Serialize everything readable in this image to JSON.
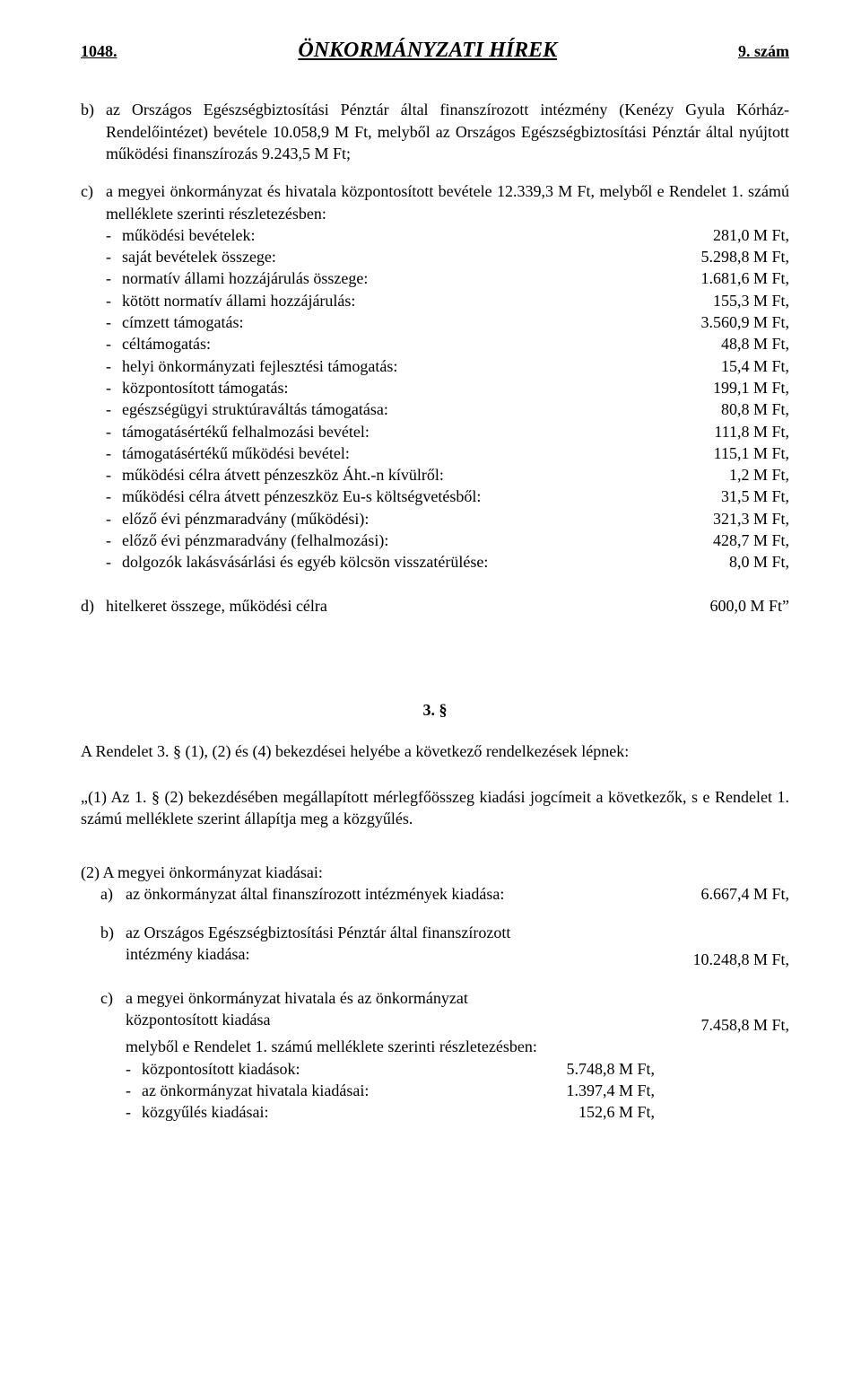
{
  "header": {
    "left": "1048.",
    "center": "ÖNKORMÁNYZATI HÍREK",
    "right": "9. szám"
  },
  "b_intro": {
    "lead": "b)",
    "text1": "az Országos Egészségbiztosítási Pénztár által finanszírozott intézmény (Kenézy Gyula Kórház-Rendelőintézet) bevétele 10.058,9 M Ft, melyből az Országos Egészségbiztosítási Pénztár által nyújtott működési finanszírozás 9.243,5 M Ft;"
  },
  "c_intro": {
    "lead": "c)",
    "text": "a megyei önkormányzat és hivatala központosított bevétele 12.339,3 M Ft, melyből e Rendelet 1. számú melléklete szerinti részletezésben:"
  },
  "c_items": [
    {
      "label": "működési bevételek:",
      "val": "281,0 M Ft,"
    },
    {
      "label": "saját bevételek összege:",
      "val": "5.298,8 M Ft,"
    },
    {
      "label": "normatív állami hozzájárulás összege:",
      "val": "1.681,6 M Ft,"
    },
    {
      "label": "kötött normatív állami hozzájárulás:",
      "val": "155,3 M Ft,"
    },
    {
      "label": "címzett támogatás:",
      "val": "3.560,9 M Ft,"
    },
    {
      "label": "céltámogatás:",
      "val": "48,8 M Ft,"
    },
    {
      "label": "helyi önkormányzati fejlesztési támogatás:",
      "val": "15,4 M Ft,"
    },
    {
      "label": "központosított támogatás:",
      "val": "199,1 M Ft,"
    },
    {
      "label": "egészségügyi struktúraváltás támogatása:",
      "val": "80,8 M Ft,"
    },
    {
      "label": "támogatásértékű felhalmozási bevétel:",
      "val": "111,8 M Ft,"
    },
    {
      "label": "támogatásértékű működési bevétel:",
      "val": "115,1 M Ft,"
    },
    {
      "label": "működési célra átvett pénzeszköz Áht.-n kívülről:",
      "val": "1,2 M Ft,"
    },
    {
      "label": "működési célra átvett pénzeszköz Eu-s költségvetésből:",
      "val": "31,5 M Ft,"
    },
    {
      "label": "előző évi pénzmaradvány (működési):",
      "val": "321,3 M Ft,"
    },
    {
      "label": "előző évi pénzmaradvány (felhalmozási):",
      "val": "428,7 M Ft,"
    },
    {
      "label": "dolgozók lakásvásárlási és egyéb kölcsön visszatérülése:",
      "val": "8,0 M Ft,"
    }
  ],
  "d_line": {
    "lead": "d)",
    "label": "hitelkeret összege, működési célra",
    "val": "600,0 M Ft”"
  },
  "section3": {
    "num": "3. §",
    "intro": "A Rendelet 3. § (1), (2) és (4) bekezdései helyébe a következő rendelkezések lépnek:",
    "p1": "„(1) Az 1. § (2) bekezdésében megállapított mérlegfőösszeg kiadási jogcímeit a következők, s e Rendelet 1. számú melléklete szerint állapítja meg a közgyűlés."
  },
  "s2": {
    "heading": "(2) A megyei önkormányzat kiadásai:",
    "a": {
      "lead": "a)",
      "label": "az önkormányzat által finanszírozott intézmények kiadása:",
      "val": "6.667,4 M Ft,"
    },
    "b": {
      "lead": "b)",
      "line1": "az Országos Egészségbiztosítási Pénztár által finanszírozott",
      "line2": "intézmény kiadása:",
      "val": "10.248,8 M Ft,"
    },
    "c": {
      "lead": "c)",
      "line1": "a megyei önkormányzat hivatala és az önkormányzat",
      "line2": "központosított kiadása",
      "val": "7.458,8 M Ft,",
      "sub": "melyből e Rendelet 1. számú melléklete szerinti részletezésben:",
      "items": [
        {
          "label": "központosított kiadások:",
          "val": "5.748,8 M Ft,"
        },
        {
          "label": "az önkormányzat hivatala kiadásai:",
          "val": "1.397,4 M Ft,"
        },
        {
          "label": "közgyűlés kiadásai:",
          "val": "152,6 M Ft,"
        }
      ]
    }
  }
}
